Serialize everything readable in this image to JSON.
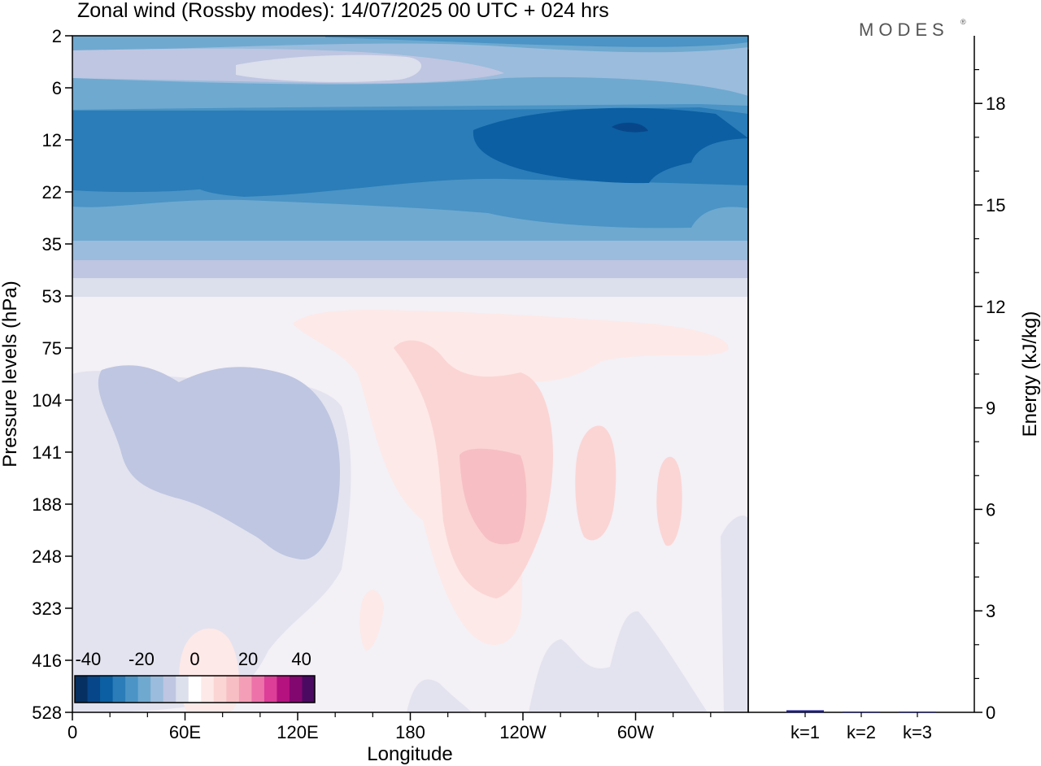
{
  "title": "Zonal wind (Rossby modes):  14/07/2025  00 UTC  + 024 hrs",
  "logo": "MODES",
  "colors": {
    "neg_scale": [
      "#053061",
      "#08468a",
      "#0b5fa2",
      "#2a7db8",
      "#4b94c5",
      "#6fa9d0",
      "#9bbcdc",
      "#bfc6e1",
      "#dcdfec"
    ],
    "pos_scale": [
      "#fde9e7",
      "#fbd5d4",
      "#f7bfc3",
      "#f49fb7",
      "#ee72aa",
      "#dc3e98",
      "#b5127f",
      "#82076f",
      "#4b0a62"
    ],
    "background": "#f3f0f6"
  },
  "chart_data": [
    {
      "type": "heatmap",
      "xlabel": "Longitude",
      "ylabel": "Pressure levels (hPa)",
      "x_ticks": [
        "0",
        "60E",
        "120E",
        "180",
        "120W",
        "60W"
      ],
      "y_ticks": [
        "2",
        "6",
        "12",
        "22",
        "35",
        "53",
        "75",
        "104",
        "141",
        "188",
        "248",
        "323",
        "416",
        "528"
      ],
      "colorbar": {
        "labels": [
          "-40",
          "-20",
          "0",
          "20",
          "40"
        ],
        "range": [
          -45,
          45
        ],
        "step": 5
      },
      "features": [
        {
          "region": "2-6 hPa",
          "value_range": [
            -15,
            -5
          ]
        },
        {
          "region": "6-35 hPa",
          "value_range": [
            -30,
            -20
          ]
        },
        {
          "region": "12-22 hPa, 120W-60W",
          "value_range": [
            -35,
            -30
          ]
        },
        {
          "region": "53-528 hPa",
          "value_range": [
            -5,
            5
          ]
        },
        {
          "region": "104-248 hPa, 15E-140E",
          "value_range": [
            -10,
            -5
          ]
        },
        {
          "region": "141-248 hPa, 160W-110W",
          "value_range": [
            10,
            15
          ]
        }
      ]
    },
    {
      "type": "bar",
      "ylabel": "Energy (kJ/kg)",
      "categories": [
        "k=1",
        "k=2",
        "k=3"
      ],
      "values": [
        0.06,
        0.02,
        0.02
      ],
      "ylim": [
        0,
        20
      ],
      "y_ticks": [
        "0",
        "3",
        "6",
        "9",
        "12",
        "15",
        "18"
      ]
    }
  ]
}
